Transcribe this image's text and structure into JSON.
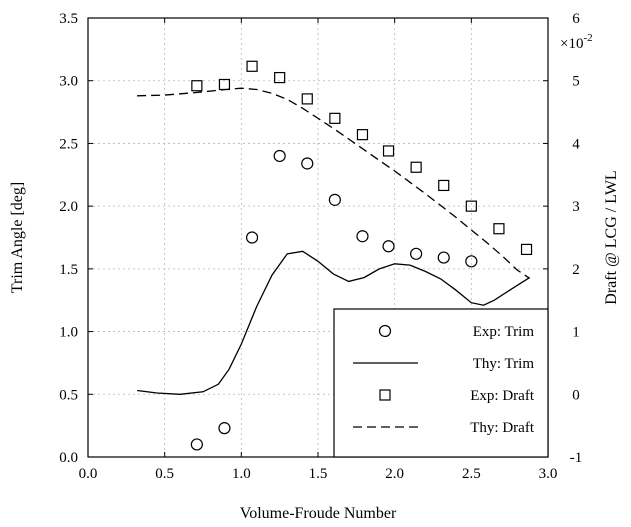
{
  "chart_data": {
    "type": "scatter",
    "xlabel": "Volume-Froude Number",
    "ylabel": "Trim Angle [deg]",
    "y2label": "Draft @ LCG / LWL",
    "y2_multiplier_label": "×10",
    "y2_multiplier_exp": "-2",
    "xlim": [
      0.0,
      3.0
    ],
    "ylim": [
      0.0,
      3.5
    ],
    "y2lim": [
      -1,
      6
    ],
    "xticks": [
      "0.0",
      "0.5",
      "1.0",
      "1.5",
      "2.0",
      "2.5",
      "3.0"
    ],
    "yticks": [
      "0.0",
      "0.5",
      "1.0",
      "1.5",
      "2.0",
      "2.5",
      "3.0",
      "3.5"
    ],
    "y2ticks": [
      "-1",
      "0",
      "1",
      "2",
      "3",
      "4",
      "5",
      "6"
    ],
    "grid": true,
    "legend_position": "bottom-right",
    "series": [
      {
        "name": "Exp: Trim",
        "axis": "left",
        "marker": "circle",
        "x": [
          0.71,
          0.89,
          1.07,
          1.25,
          1.43,
          1.61,
          1.79,
          1.96,
          2.14,
          2.32,
          2.5
        ],
        "y": [
          0.1,
          0.23,
          1.75,
          2.4,
          2.34,
          2.05,
          1.76,
          1.68,
          1.62,
          1.59,
          1.56
        ]
      },
      {
        "name": "Thy: Trim",
        "axis": "left",
        "line": "solid",
        "x": [
          0.32,
          0.45,
          0.6,
          0.75,
          0.85,
          0.92,
          1.0,
          1.1,
          1.2,
          1.3,
          1.4,
          1.5,
          1.6,
          1.7,
          1.8,
          1.9,
          2.0,
          2.1,
          2.2,
          2.3,
          2.4,
          2.5,
          2.58,
          2.65,
          2.75,
          2.88
        ],
        "y": [
          0.53,
          0.51,
          0.5,
          0.52,
          0.58,
          0.7,
          0.9,
          1.2,
          1.45,
          1.62,
          1.64,
          1.56,
          1.46,
          1.4,
          1.43,
          1.5,
          1.54,
          1.53,
          1.48,
          1.42,
          1.33,
          1.23,
          1.21,
          1.25,
          1.33,
          1.43
        ]
      },
      {
        "name": "Exp: Draft",
        "axis": "right",
        "marker": "square",
        "x": [
          0.71,
          0.89,
          1.07,
          1.25,
          1.43,
          1.61,
          1.79,
          1.96,
          2.14,
          2.32,
          2.5,
          2.68,
          2.86
        ],
        "y": [
          4.92,
          4.94,
          5.23,
          5.05,
          4.71,
          4.4,
          4.14,
          3.88,
          3.62,
          3.33,
          3.0,
          2.64,
          2.31
        ]
      },
      {
        "name": "Thy: Draft",
        "axis": "right",
        "line": "dashed",
        "x": [
          0.32,
          0.5,
          0.7,
          0.9,
          1.0,
          1.1,
          1.2,
          1.3,
          1.4,
          1.5,
          1.6,
          1.7,
          1.8,
          1.9,
          2.0,
          2.1,
          2.2,
          2.3,
          2.4,
          2.5,
          2.6,
          2.7,
          2.8,
          2.88
        ],
        "y": [
          4.76,
          4.77,
          4.81,
          4.86,
          4.88,
          4.86,
          4.8,
          4.7,
          4.56,
          4.4,
          4.24,
          4.07,
          3.9,
          3.73,
          3.56,
          3.38,
          3.2,
          3.01,
          2.82,
          2.62,
          2.42,
          2.21,
          1.98,
          1.85
        ]
      }
    ]
  }
}
